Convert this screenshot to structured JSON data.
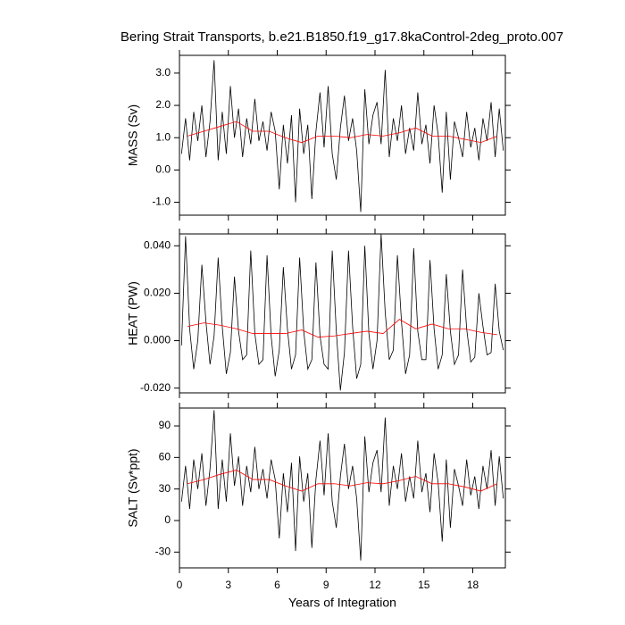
{
  "chart_data": [
    {
      "type": "line",
      "title": "Bering Strait Transports, b.e21.B1850.f19_g17.8kaControl-2deg_proto.007",
      "ylabel": "MASS (Sv)",
      "xlim": [
        0,
        20
      ],
      "xticks": [
        0,
        3,
        6,
        9,
        12,
        15,
        18
      ],
      "ylim": [
        -1.4,
        3.55
      ],
      "yticks": [
        {
          "value": -1.0,
          "label": "-1.0"
        },
        {
          "value": 0.0,
          "label": "0.0"
        },
        {
          "value": 1.0,
          "label": "1.0"
        },
        {
          "value": 2.0,
          "label": "2.0"
        },
        {
          "value": 3.0,
          "label": "3.0"
        }
      ],
      "series": [
        {
          "color": "#000000",
          "x": [
            0.125,
            0.375,
            0.625,
            0.875,
            1.125,
            1.375,
            1.625,
            1.875,
            2.125,
            2.375,
            2.625,
            2.875,
            3.125,
            3.375,
            3.625,
            3.875,
            4.125,
            4.375,
            4.625,
            4.875,
            5.125,
            5.375,
            5.625,
            5.875,
            6.125,
            6.375,
            6.625,
            6.875,
            7.125,
            7.375,
            7.625,
            7.875,
            8.125,
            8.375,
            8.625,
            8.875,
            9.125,
            9.375,
            9.625,
            9.875,
            10.125,
            10.375,
            10.625,
            10.875,
            11.125,
            11.375,
            11.625,
            11.875,
            12.125,
            12.375,
            12.625,
            12.875,
            13.125,
            13.375,
            13.625,
            13.875,
            14.125,
            14.375,
            14.625,
            14.875,
            15.125,
            15.375,
            15.625,
            15.875,
            16.125,
            16.375,
            16.625,
            16.875,
            17.125,
            17.375,
            17.625,
            17.875,
            18.125,
            18.375,
            18.625,
            18.875,
            19.125,
            19.375,
            19.625,
            19.875
          ],
          "values": [
            0.5,
            1.6,
            0.3,
            1.8,
            0.9,
            2.0,
            0.4,
            1.5,
            3.4,
            0.3,
            1.8,
            0.5,
            2.6,
            1.0,
            1.9,
            0.4,
            1.6,
            0.8,
            2.2,
            0.9,
            1.5,
            0.6,
            1.8,
            1.2,
            -0.6,
            1.4,
            0.2,
            1.7,
            -1.0,
            1.9,
            0.5,
            1.4,
            -0.9,
            1.2,
            2.4,
            0.7,
            2.6,
            0.5,
            -0.3,
            1.3,
            2.3,
            0.9,
            1.6,
            0.6,
            -1.3,
            2.5,
            0.8,
            1.7,
            2.1,
            0.8,
            3.1,
            0.4,
            1.6,
            0.9,
            2.0,
            0.5,
            1.3,
            0.6,
            2.4,
            0.8,
            1.4,
            0.2,
            2.0,
            1.1,
            -0.7,
            1.8,
            -0.3,
            1.5,
            1.0,
            0.4,
            1.8,
            0.7,
            1.3,
            0.3,
            1.6,
            0.9,
            2.1,
            0.4,
            1.9,
            0.6
          ]
        },
        {
          "color": "#ff0000",
          "x": [
            0.5,
            1.5,
            2.5,
            3.5,
            4.5,
            5.5,
            6.5,
            7.5,
            8.5,
            9.5,
            10.5,
            11.5,
            12.5,
            13.5,
            14.5,
            15.5,
            16.5,
            17.5,
            18.5,
            19.5
          ],
          "values": [
            1.05,
            1.2,
            1.35,
            1.5,
            1.2,
            1.2,
            1.0,
            0.85,
            1.05,
            1.05,
            1.0,
            1.1,
            1.05,
            1.15,
            1.3,
            1.05,
            1.05,
            0.95,
            0.85,
            1.05
          ]
        }
      ]
    },
    {
      "type": "line",
      "ylabel": "HEAT (PW)",
      "xlim": [
        0,
        20
      ],
      "xticks": [
        0,
        3,
        6,
        9,
        12,
        15,
        18
      ],
      "ylim": [
        -0.022,
        0.045
      ],
      "yticks": [
        {
          "value": -0.02,
          "label": "-0.020"
        },
        {
          "value": 0.0,
          "label": "0.000"
        },
        {
          "value": 0.02,
          "label": "0.020"
        },
        {
          "value": 0.04,
          "label": "0.040"
        }
      ],
      "series": [
        {
          "color": "#000000",
          "x": [
            0.125,
            0.375,
            0.625,
            0.875,
            1.125,
            1.375,
            1.625,
            1.875,
            2.125,
            2.375,
            2.625,
            2.875,
            3.125,
            3.375,
            3.625,
            3.875,
            4.125,
            4.375,
            4.625,
            4.875,
            5.125,
            5.375,
            5.625,
            5.875,
            6.125,
            6.375,
            6.625,
            6.875,
            7.125,
            7.375,
            7.625,
            7.875,
            8.125,
            8.375,
            8.625,
            8.875,
            9.125,
            9.375,
            9.625,
            9.875,
            10.125,
            10.375,
            10.625,
            10.875,
            11.125,
            11.375,
            11.625,
            11.875,
            12.125,
            12.375,
            12.625,
            12.875,
            13.125,
            13.375,
            13.625,
            13.875,
            14.125,
            14.375,
            14.625,
            14.875,
            15.125,
            15.375,
            15.625,
            15.875,
            16.125,
            16.375,
            16.625,
            16.875,
            17.125,
            17.375,
            17.625,
            17.875,
            18.125,
            18.375,
            18.625,
            18.875,
            19.125,
            19.375,
            19.625,
            19.875
          ],
          "values": [
            -0.002,
            0.044,
            0.005,
            -0.012,
            0.0,
            0.032,
            0.008,
            -0.01,
            0.002,
            0.035,
            0.006,
            -0.014,
            -0.005,
            0.027,
            0.004,
            -0.008,
            -0.006,
            0.038,
            0.003,
            -0.01,
            -0.008,
            0.036,
            0.002,
            -0.015,
            -0.004,
            0.031,
            0.005,
            -0.012,
            -0.006,
            0.035,
            0.004,
            -0.012,
            -0.008,
            0.033,
            0.002,
            -0.01,
            -0.012,
            0.038,
            0.004,
            -0.021,
            -0.005,
            0.038,
            0.006,
            -0.016,
            -0.01,
            0.04,
            0.003,
            -0.012,
            0.0,
            0.045,
            0.012,
            -0.008,
            -0.004,
            0.036,
            0.008,
            -0.014,
            -0.006,
            0.039,
            0.004,
            -0.008,
            -0.008,
            0.034,
            0.005,
            -0.012,
            -0.006,
            0.028,
            0.004,
            -0.01,
            -0.006,
            0.03,
            0.005,
            -0.009,
            -0.007,
            0.02,
            0.006,
            -0.006,
            -0.005,
            0.024,
            0.004,
            -0.004
          ]
        },
        {
          "color": "#ff0000",
          "x": [
            0.5,
            1.5,
            2.5,
            3.5,
            4.5,
            5.5,
            6.5,
            7.5,
            8.5,
            9.5,
            10.5,
            11.5,
            12.5,
            13.5,
            14.5,
            15.5,
            16.5,
            17.5,
            18.5,
            19.5
          ],
          "values": [
            0.006,
            0.0075,
            0.0065,
            0.005,
            0.003,
            0.003,
            0.003,
            0.0045,
            0.0015,
            0.002,
            0.003,
            0.004,
            0.003,
            0.009,
            0.005,
            0.007,
            0.005,
            0.005,
            0.0035,
            0.0025
          ]
        }
      ]
    },
    {
      "type": "line",
      "ylabel": "SALT (Sv*ppt)",
      "xlabel": "Years of Integration",
      "xlim": [
        0,
        20
      ],
      "xticks": [
        0,
        3,
        6,
        9,
        12,
        15,
        18
      ],
      "ylim": [
        -45,
        107
      ],
      "yticks": [
        -30,
        0,
        30,
        60,
        90
      ],
      "series": [
        {
          "color": "#000000",
          "x": [
            0.125,
            0.375,
            0.625,
            0.875,
            1.125,
            1.375,
            1.625,
            1.875,
            2.125,
            2.375,
            2.625,
            2.875,
            3.125,
            3.375,
            3.625,
            3.875,
            4.125,
            4.375,
            4.625,
            4.875,
            5.125,
            5.375,
            5.625,
            5.875,
            6.125,
            6.375,
            6.625,
            6.875,
            7.125,
            7.375,
            7.625,
            7.875,
            8.125,
            8.375,
            8.625,
            8.875,
            9.125,
            9.375,
            9.625,
            9.875,
            10.125,
            10.375,
            10.625,
            10.875,
            11.125,
            11.375,
            11.625,
            11.875,
            12.125,
            12.375,
            12.625,
            12.875,
            13.125,
            13.375,
            13.625,
            13.875,
            14.125,
            14.375,
            14.625,
            14.875,
            15.125,
            15.375,
            15.625,
            15.875,
            16.125,
            16.375,
            16.625,
            16.875,
            17.125,
            17.375,
            17.625,
            17.875,
            18.125,
            18.375,
            18.625,
            18.875,
            19.125,
            19.375,
            19.625,
            19.875
          ],
          "values": [
            18,
            52,
            11,
            58,
            30,
            64,
            14,
            49,
            105,
            11,
            58,
            18,
            83,
            33,
            61,
            14,
            52,
            27,
            70,
            30,
            49,
            21,
            58,
            39,
            -17,
            45,
            8,
            55,
            -29,
            61,
            18,
            45,
            -26,
            39,
            76,
            24,
            83,
            18,
            -7,
            42,
            73,
            30,
            52,
            21,
            -38,
            80,
            27,
            55,
            67,
            27,
            98,
            14,
            52,
            30,
            64,
            18,
            42,
            21,
            76,
            27,
            45,
            8,
            64,
            36,
            -20,
            58,
            -7,
            49,
            33,
            14,
            58,
            24,
            42,
            11,
            52,
            30,
            67,
            14,
            61,
            21
          ]
        },
        {
          "color": "#ff0000",
          "x": [
            0.5,
            1.5,
            2.5,
            3.5,
            4.5,
            5.5,
            6.5,
            7.5,
            8.5,
            9.5,
            10.5,
            11.5,
            12.5,
            13.5,
            14.5,
            15.5,
            16.5,
            17.5,
            18.5,
            19.5
          ],
          "values": [
            35,
            39,
            44,
            48,
            39,
            39,
            33,
            28,
            35,
            35,
            33,
            36,
            35,
            38,
            42,
            35,
            35,
            32,
            28,
            35
          ]
        }
      ]
    }
  ]
}
